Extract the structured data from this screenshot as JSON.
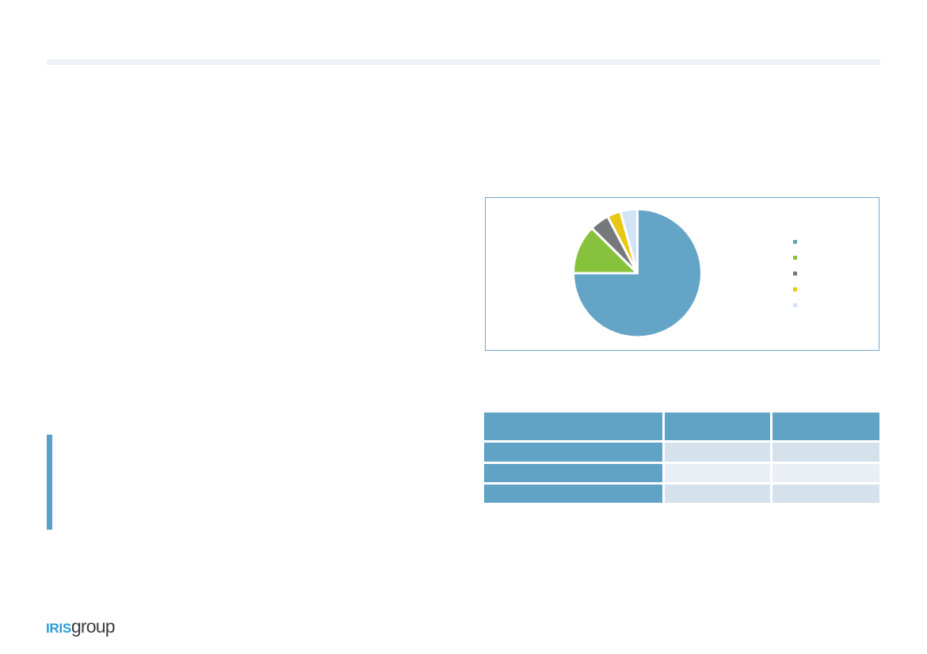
{
  "slide": {
    "bg_color": "#ffffff"
  },
  "header_band": {
    "color": "#edf1f6"
  },
  "chart_panel": {
    "border_color": "#6ea9cd",
    "bg_color": "#ffffff"
  },
  "chart_data": {
    "type": "pie",
    "title": "",
    "segments": [
      {
        "label": "",
        "value": 75.0,
        "color": "#64a4c6"
      },
      {
        "label": "",
        "value": 12.4,
        "color": "#86c23c"
      },
      {
        "label": "",
        "value": 4.9,
        "color": "#77787b"
      },
      {
        "label": "",
        "value": 3.4,
        "color": "#e9c713"
      },
      {
        "label": "",
        "value": 4.3,
        "color": "#d2e3f6"
      }
    ],
    "start_angle_deg": 0,
    "direction": "clockwise",
    "slice_separator_color": "#ffffff",
    "legend_position": "right",
    "legend_labels_visible": false,
    "data_labels_visible": false
  },
  "table": {
    "header_bg": "#61a3c5",
    "label_col_bg": "#61a3c5",
    "row_band_colors": [
      "#d5e2eb",
      "#e9eff5",
      "#d5e2eb"
    ],
    "columns": [
      {
        "header": ""
      },
      {
        "header": ""
      },
      {
        "header": ""
      }
    ],
    "rows": [
      [
        "",
        "",
        ""
      ],
      [
        "",
        "",
        ""
      ],
      [
        "",
        "",
        ""
      ]
    ]
  },
  "accent_bar": {
    "color": "#5ba1c4"
  },
  "logo": {
    "text_primary": "IRIS",
    "text_secondary": "group",
    "primary_color": "#2b9cd8",
    "secondary_color": "#3c3d3f"
  }
}
